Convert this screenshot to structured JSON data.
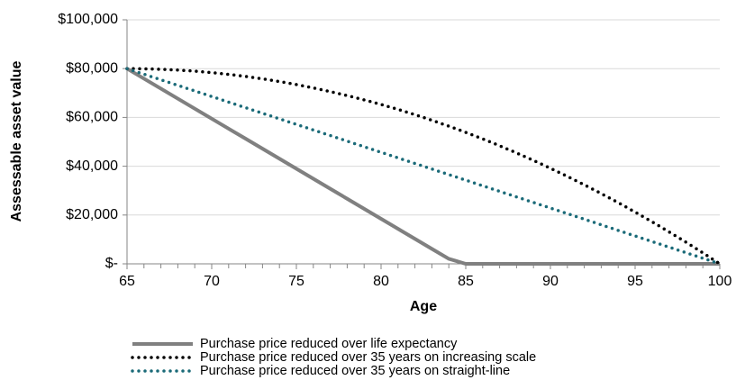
{
  "chart_data": {
    "type": "line",
    "y_label": "Assessable asset value",
    "x_label": "Age",
    "x": [
      65,
      66,
      67,
      68,
      69,
      70,
      71,
      72,
      73,
      74,
      75,
      76,
      77,
      78,
      79,
      80,
      81,
      82,
      83,
      84,
      85,
      86,
      87,
      88,
      89,
      90,
      91,
      92,
      93,
      94,
      95,
      96,
      97,
      98,
      99,
      100
    ],
    "series": [
      {
        "name": "Purchase price reduced over life expectancy",
        "color": "#808080",
        "style": "solid",
        "values": [
          80000,
          75897,
          71794,
          67691,
          63588,
          59485,
          55382,
          51279,
          47176,
          43073,
          38970,
          34867,
          30764,
          26661,
          22558,
          18455,
          14352,
          10249,
          6146,
          2043,
          0,
          0,
          0,
          0,
          0,
          0,
          0,
          0,
          0,
          0,
          0,
          0,
          0,
          0,
          0,
          0
        ]
      },
      {
        "name": "Purchase price reduced over 35 years on increasing scale",
        "color": "#000000",
        "style": "dotted",
        "values": [
          80000,
          79935,
          79739,
          79412,
          78955,
          78367,
          77649,
          76800,
          75820,
          74710,
          73469,
          72098,
          70596,
          68963,
          67200,
          65306,
          63282,
          61127,
          58841,
          56424,
          53878,
          51200,
          48392,
          45453,
          42384,
          39184,
          35853,
          32392,
          28800,
          25078,
          21224,
          17241,
          13127,
          8882,
          4506,
          0
        ]
      },
      {
        "name": "Purchase price reduced over 35 years on straight-line",
        "color": "#1a6a78",
        "style": "dotted",
        "values": [
          80000,
          77714,
          75429,
          73143,
          70857,
          68571,
          66286,
          64000,
          61714,
          59429,
          57143,
          54857,
          52571,
          50286,
          48000,
          45714,
          43429,
          41143,
          38857,
          36571,
          34286,
          32000,
          29714,
          27429,
          25143,
          22857,
          20571,
          18286,
          16000,
          13714,
          11429,
          9143,
          6857,
          4571,
          2286,
          0
        ]
      }
    ],
    "xlim": [
      65,
      100
    ],
    "xticks": [
      65,
      70,
      75,
      80,
      85,
      90,
      95,
      100
    ],
    "ylim": [
      0,
      100000
    ],
    "yticks": [
      {
        "value": 0,
        "label": "$-"
      },
      {
        "value": 20000,
        "label": "$20,000"
      },
      {
        "value": 40000,
        "label": "$40,000"
      },
      {
        "value": 60000,
        "label": "$60,000"
      },
      {
        "value": 80000,
        "label": "$80,000"
      },
      {
        "value": 100000,
        "label": "$100,000"
      }
    ],
    "grid": true,
    "legend": "bottom"
  }
}
